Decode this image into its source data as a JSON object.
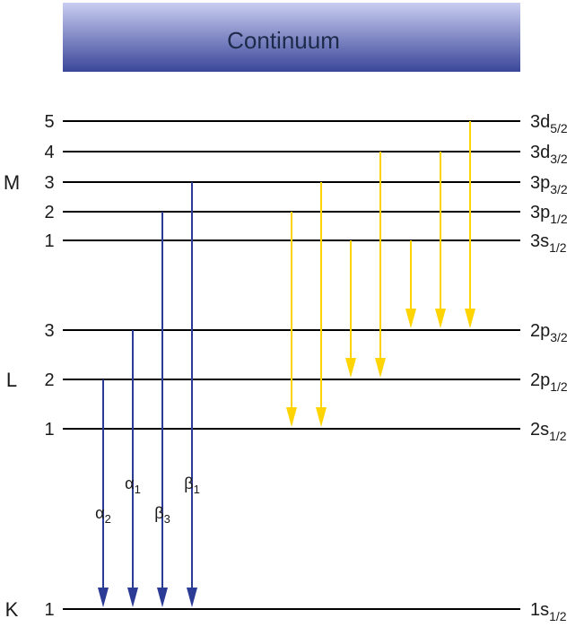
{
  "continuum": {
    "label": "Continuum"
  },
  "shells": [
    {
      "name": "M",
      "level_index": 2
    },
    {
      "name": "L",
      "level_index": 6
    },
    {
      "name": "K",
      "level_index": 8
    }
  ],
  "levels": [
    {
      "id": "3d52",
      "number": "5",
      "orbital": "3d",
      "sub": "5/2"
    },
    {
      "id": "3d32",
      "number": "4",
      "orbital": "3d",
      "sub": "3/2"
    },
    {
      "id": "3p32",
      "number": "3",
      "orbital": "3p",
      "sub": "3/2"
    },
    {
      "id": "3p12",
      "number": "2",
      "orbital": "3p",
      "sub": "1/2"
    },
    {
      "id": "3s12",
      "number": "1",
      "orbital": "3s",
      "sub": "1/2"
    },
    {
      "id": "2p32",
      "number": "3",
      "orbital": "2p",
      "sub": "3/2"
    },
    {
      "id": "2p12",
      "number": "2",
      "orbital": "2p",
      "sub": "1/2"
    },
    {
      "id": "2s12",
      "number": "1",
      "orbital": "2s",
      "sub": "1/2"
    },
    {
      "id": "1s12",
      "number": "1",
      "orbital": "1s",
      "sub": "1/2"
    }
  ],
  "k_transitions": [
    {
      "greek": "α",
      "sub": "2",
      "from": "2p12",
      "to": "1s12"
    },
    {
      "greek": "α",
      "sub": "1",
      "from": "2p32",
      "to": "1s12"
    },
    {
      "greek": "β",
      "sub": "3",
      "from": "3p12",
      "to": "1s12"
    },
    {
      "greek": "β",
      "sub": "1",
      "from": "3p32",
      "to": "1s12"
    }
  ],
  "l_transitions": [
    {
      "from": "3p12",
      "to": "2s12"
    },
    {
      "from": "3p32",
      "to": "2s12"
    },
    {
      "from": "3s12",
      "to": "2p12"
    },
    {
      "from": "3d32",
      "to": "2p12"
    },
    {
      "from": "3s12",
      "to": "2p32"
    },
    {
      "from": "3d32",
      "to": "2p32"
    },
    {
      "from": "3d52",
      "to": "2p32"
    }
  ],
  "colors": {
    "k_arrow": "#2b3b96",
    "l_arrow": "#ffd400",
    "level_line": "#000000",
    "continuum_top": "#c9cdf1",
    "continuum_bottom": "#3a4699"
  }
}
